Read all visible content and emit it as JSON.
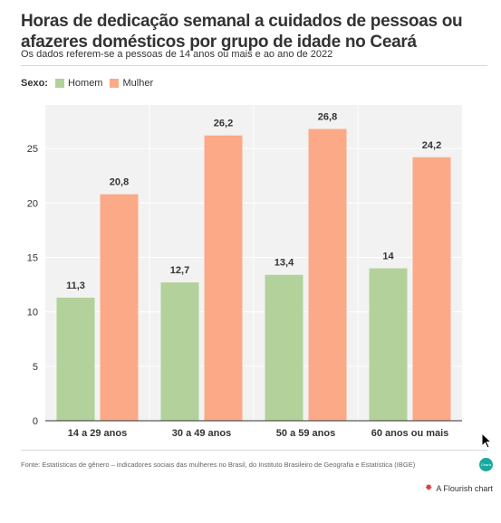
{
  "header": {
    "title": "Horas de dedicação semanal a cuidados de pessoas ou afazeres domésticos por grupo de idade no Ceará",
    "subtitle": "Os dados referem-se a pessoas de 14 anos ou mais e ao ano de 2022"
  },
  "legend": {
    "title": "Sexo:",
    "items": [
      "Homem",
      "Mulher"
    ]
  },
  "colors": {
    "homem": "#b2d19b",
    "mulher": "#fca987",
    "grid": "#ffffff",
    "plot_bg": "#f2f2f2"
  },
  "chart_data": {
    "type": "bar",
    "categories": [
      "14 a 29 anos",
      "30 a 49 anos",
      "50 a 59 anos",
      "60 anos ou mais"
    ],
    "series": [
      {
        "name": "Homem",
        "values": [
          11.3,
          12.7,
          13.4,
          14
        ],
        "labels": [
          "11,3",
          "12,7",
          "13,4",
          "14"
        ]
      },
      {
        "name": "Mulher",
        "values": [
          20.8,
          26.2,
          26.8,
          24.2
        ],
        "labels": [
          "20,8",
          "26,2",
          "26,8",
          "24,2"
        ]
      }
    ],
    "yticks": [
      "0",
      "5",
      "10",
      "15",
      "20",
      "25"
    ],
    "ytick_values": [
      0,
      5,
      10,
      15,
      20,
      25
    ],
    "ylim": [
      0,
      29
    ],
    "grid": true,
    "legend_position": "top-left"
  },
  "footer": {
    "source": "Fonte: Estatísticas de gênero – indicadores sociais das mulheres no Brasil, do Instituto Brasileiro de Geografia e Estatística (IBGE)",
    "logo_text": "Ceará",
    "flourish_label": "A Flourish chart",
    "icons": {
      "flourish": "flourish-star-icon",
      "cursor": "mouse-pointer-icon"
    }
  }
}
